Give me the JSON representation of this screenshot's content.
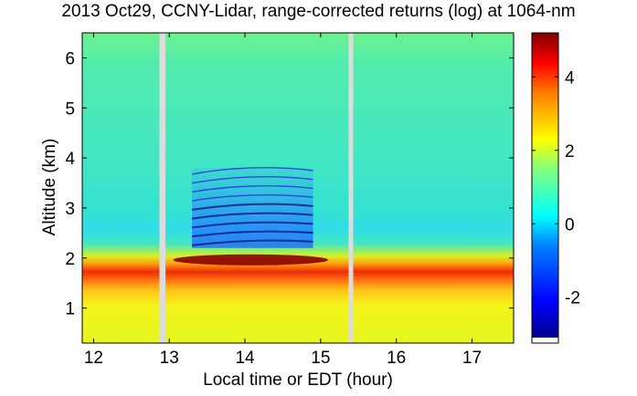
{
  "chart_data": {
    "type": "heatmap",
    "title": "2013 Oct29, CCNY-Lidar, range-corrected returns (log) at 1064-nm",
    "xlabel": "Local time or EDT (hour)",
    "ylabel": "Altitude (km)",
    "xlim": [
      11.85,
      17.55
    ],
    "ylim": [
      0.3,
      6.5
    ],
    "xticks": [
      "12",
      "13",
      "14",
      "15",
      "16",
      "17"
    ],
    "yticks": [
      "1",
      "2",
      "3",
      "4",
      "5",
      "6"
    ],
    "colorbar": {
      "range": [
        -3.1,
        5.2
      ],
      "ticks": [
        "-2",
        "0",
        "2",
        "4"
      ],
      "colormap": "jet"
    },
    "data_gaps_hour": [
      [
        12.87,
        12.95
      ],
      [
        15.37,
        15.43
      ]
    ],
    "layers": [
      {
        "feature": "aerosol boundary-layer top (strong returns)",
        "x_range": [
          11.9,
          17.5
        ],
        "altitude_km_approx": 2.0,
        "value_approx": 4.5
      },
      {
        "feature": "saturated layer top",
        "x_range": [
          13.05,
          15.1
        ],
        "altitude_km_approx": 2.0,
        "value_approx": 5.2
      },
      {
        "feature": "low-return streaks aloft",
        "x_range": [
          13.3,
          14.9
        ],
        "altitude_km_range": [
          2.2,
          3.8
        ],
        "value_approx": -2.8
      },
      {
        "feature": "free troposphere background",
        "x_range": [
          11.9,
          17.5
        ],
        "altitude_km_range": [
          2.4,
          6.5
        ],
        "value_approx": 0.5
      },
      {
        "feature": "mixed layer",
        "x_range": [
          11.9,
          17.5
        ],
        "altitude_km_range": [
          0.3,
          1.7
        ],
        "value_approx": 2.8
      }
    ]
  }
}
